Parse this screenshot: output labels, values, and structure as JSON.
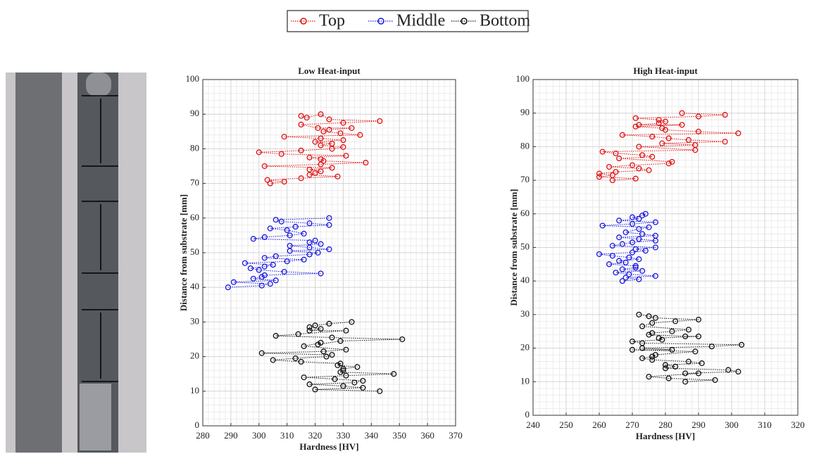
{
  "chart_data": [
    {
      "type": "line",
      "title": "Low Heat-input",
      "xlabel": "Hardness [HV]",
      "ylabel": "Distance from substrate [mm]",
      "xlim": [
        280,
        370
      ],
      "xticks": [
        280,
        290,
        300,
        310,
        320,
        330,
        340,
        350,
        360,
        370
      ],
      "ylim": [
        0,
        100
      ],
      "yticks": [
        0,
        10,
        20,
        30,
        40,
        50,
        60,
        70,
        80,
        90,
        100
      ],
      "grid": true,
      "minor_grid": true,
      "series": [
        {
          "name": "Top",
          "color": "#e01010",
          "x": [
            315,
            317,
            322,
            325,
            343,
            330,
            315,
            321,
            333,
            325,
            323,
            329,
            336,
            309,
            322,
            330,
            320,
            326,
            322,
            330,
            326,
            315,
            300,
            308,
            331,
            318,
            322,
            323,
            338,
            322,
            302,
            326,
            318,
            322,
            320,
            318,
            328,
            315,
            303,
            309,
            304
          ],
          "values": [
            89.5,
            89,
            90,
            88.5,
            88,
            87.5,
            87,
            86,
            86,
            85.5,
            85,
            84.5,
            84,
            83.5,
            83,
            82.5,
            82,
            81.5,
            81,
            80.5,
            80,
            79.5,
            79,
            78.5,
            78,
            77.5,
            77,
            76.5,
            76,
            75.5,
            75,
            74.5,
            74,
            73.5,
            73,
            72.5,
            72,
            71.5,
            71,
            70.5,
            70
          ]
        },
        {
          "name": "Middle",
          "color": "#1818e0",
          "x": [
            325,
            306,
            308,
            318,
            325,
            313,
            304,
            310,
            316,
            311,
            302,
            298,
            320,
            318,
            322,
            311,
            318,
            325,
            311,
            321,
            318,
            306,
            302,
            316,
            310,
            295,
            305,
            302,
            297,
            300,
            309,
            322,
            302,
            301,
            298,
            306,
            291,
            304,
            301,
            289
          ],
          "values": [
            60,
            59.5,
            59,
            58.5,
            58,
            57.5,
            57,
            56.5,
            55.5,
            55,
            54.5,
            54,
            53.5,
            53,
            52.5,
            52,
            51.5,
            51,
            50.5,
            50,
            49.5,
            49,
            48.5,
            48,
            47.5,
            47,
            46.5,
            46,
            45.5,
            45,
            44.5,
            44,
            43.5,
            43,
            42.5,
            42,
            41.5,
            41,
            40.5,
            40
          ]
        },
        {
          "name": "Bottom",
          "color": "#111111",
          "x": [
            333,
            325,
            320,
            318,
            322,
            318,
            331,
            314,
            306,
            326,
            351,
            329,
            321,
            322,
            316,
            331,
            323,
            301,
            326,
            324,
            313,
            305,
            315,
            329,
            328,
            335,
            330,
            330,
            329,
            348,
            331,
            316,
            327,
            337,
            334,
            318,
            330,
            337,
            320,
            343
          ],
          "values": [
            30,
            29.5,
            29,
            28.5,
            28,
            27.5,
            27.5,
            26.5,
            26,
            25.5,
            25,
            24.5,
            23.5,
            24,
            23,
            22,
            21.5,
            21,
            20.5,
            20,
            19.5,
            19,
            18.5,
            18,
            17.5,
            17,
            16.5,
            16,
            15.5,
            15,
            14.5,
            14,
            13.5,
            13,
            12.5,
            12,
            11.5,
            11,
            10.5,
            10
          ]
        }
      ]
    },
    {
      "type": "line",
      "title": "High Heat-input",
      "xlabel": "Hardness [HV]",
      "ylabel": "Distance from substrate [mm]",
      "xlim": [
        240,
        320
      ],
      "xticks": [
        240,
        250,
        260,
        270,
        280,
        290,
        300,
        310,
        320
      ],
      "ylim": [
        0,
        100
      ],
      "yticks": [
        0,
        10,
        20,
        30,
        40,
        50,
        60,
        70,
        80,
        90,
        100
      ],
      "grid": true,
      "minor_grid": true,
      "series": [
        {
          "name": "Top",
          "color": "#e01010",
          "x": [
            285,
            298,
            290,
            271,
            278,
            280,
            278,
            272,
            285,
            271,
            279,
            280,
            290,
            302,
            267,
            276,
            281,
            287,
            298,
            279,
            289,
            272,
            289,
            261,
            265,
            273,
            276,
            266,
            282,
            281,
            270,
            263,
            272,
            275,
            265,
            260,
            264,
            260,
            271,
            264
          ],
          "values": [
            90,
            89.5,
            89,
            88.5,
            88,
            87.5,
            87,
            86.5,
            86.5,
            86,
            85.5,
            85,
            84.5,
            84,
            83.5,
            83,
            82.5,
            82,
            81.5,
            81,
            80.5,
            80,
            79,
            78.5,
            78,
            77.5,
            77,
            76.5,
            75.5,
            75,
            74.5,
            74,
            73.5,
            73,
            72.5,
            72,
            71.5,
            71,
            70.5,
            70
          ]
        },
        {
          "name": "Middle",
          "color": "#1818e0",
          "x": [
            274,
            273,
            270,
            272,
            266,
            277,
            270,
            261,
            275,
            272,
            268,
            273,
            277,
            266,
            272,
            277,
            270,
            267,
            264,
            277,
            271,
            274,
            270,
            260,
            264,
            269,
            272,
            266,
            268,
            263,
            271,
            271,
            267,
            273,
            265,
            269,
            277,
            268,
            272,
            267
          ],
          "values": [
            60,
            59.5,
            59,
            58.5,
            58,
            57.5,
            57,
            56.5,
            56,
            55.5,
            54.5,
            54,
            53.5,
            53,
            52.5,
            52,
            51.5,
            51,
            50.5,
            50,
            49.5,
            49,
            48.5,
            48,
            47.5,
            47,
            46.5,
            46,
            45.5,
            45,
            44.5,
            44,
            43.5,
            43,
            42.5,
            42,
            41.5,
            41,
            40.5,
            40
          ]
        },
        {
          "name": "Bottom",
          "color": "#111111",
          "x": [
            272,
            275,
            277,
            290,
            283,
            276,
            273,
            287,
            282,
            276,
            275,
            286,
            290,
            278,
            279,
            270,
            273,
            303,
            294,
            273,
            282,
            270,
            289,
            277,
            276,
            273,
            276,
            287,
            291,
            280,
            283,
            280,
            299,
            302,
            286,
            290,
            275,
            281,
            295,
            286
          ],
          "values": [
            30,
            29.5,
            29,
            28.5,
            28,
            27.5,
            26.5,
            25.5,
            25,
            24.5,
            24,
            23.5,
            23.5,
            23,
            22.5,
            22,
            21.5,
            21,
            20.5,
            20,
            19.5,
            19.5,
            19,
            18,
            17.5,
            17,
            16.5,
            16,
            15.5,
            15,
            14.5,
            14,
            13.5,
            13,
            12.5,
            12.5,
            11.5,
            11,
            10.5,
            10
          ]
        }
      ]
    }
  ]
}
